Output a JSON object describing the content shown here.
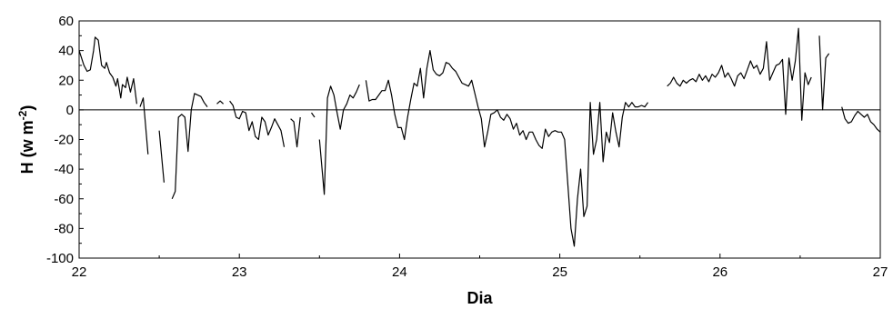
{
  "chart_data": {
    "type": "line",
    "xlabel": "Dia",
    "ylabel_main": "H (w m",
    "ylabel_sup": "-2",
    "ylabel_close": ")",
    "xlim": [
      22,
      27
    ],
    "ylim": [
      -100,
      60
    ],
    "xticks": [
      22,
      23,
      24,
      25,
      26,
      27
    ],
    "yticks": [
      -100,
      -80,
      -60,
      -40,
      -20,
      0,
      20,
      40,
      60
    ],
    "grid": false,
    "zero_line": true,
    "line_color": "#000000",
    "series": [
      {
        "segments": [
          [
            [
              22.0,
              40
            ],
            [
              22.03,
              30
            ],
            [
              22.05,
              26
            ],
            [
              22.07,
              27
            ],
            [
              22.09,
              40
            ],
            [
              22.1,
              49
            ],
            [
              22.12,
              47
            ],
            [
              22.14,
              30
            ],
            [
              22.16,
              28
            ],
            [
              22.17,
              32
            ],
            [
              22.19,
              25
            ],
            [
              22.21,
              22
            ],
            [
              22.23,
              16
            ],
            [
              22.24,
              21
            ],
            [
              22.26,
              8
            ],
            [
              22.27,
              17
            ],
            [
              22.29,
              15
            ],
            [
              22.3,
              22
            ],
            [
              22.32,
              12
            ],
            [
              22.34,
              21
            ],
            [
              22.36,
              4
            ]
          ],
          [
            [
              22.38,
              2
            ],
            [
              22.4,
              8
            ],
            [
              22.43,
              -30
            ]
          ],
          [
            [
              22.5,
              -14
            ],
            [
              22.53,
              -49
            ]
          ],
          [
            [
              22.58,
              -60
            ],
            [
              22.6,
              -55
            ],
            [
              22.62,
              -5
            ],
            [
              22.64,
              -3
            ],
            [
              22.66,
              -5
            ],
            [
              22.68,
              -28
            ],
            [
              22.7,
              0
            ],
            [
              22.72,
              11
            ],
            [
              22.74,
              10
            ],
            [
              22.76,
              9
            ],
            [
              22.78,
              5
            ],
            [
              22.8,
              2
            ]
          ],
          [
            [
              22.86,
              4
            ],
            [
              22.88,
              6
            ],
            [
              22.9,
              4
            ]
          ],
          [
            [
              22.94,
              6
            ],
            [
              22.96,
              3
            ],
            [
              22.98,
              -5
            ],
            [
              23.0,
              -6
            ],
            [
              23.02,
              -1
            ],
            [
              23.04,
              -2
            ],
            [
              23.06,
              -14
            ],
            [
              23.08,
              -8
            ],
            [
              23.1,
              -18
            ],
            [
              23.12,
              -20
            ],
            [
              23.14,
              -5
            ],
            [
              23.16,
              -8
            ],
            [
              23.18,
              -17
            ],
            [
              23.2,
              -12
            ],
            [
              23.22,
              -6
            ],
            [
              23.24,
              -10
            ],
            [
              23.26,
              -14
            ],
            [
              23.28,
              -25
            ]
          ],
          [
            [
              23.32,
              -6
            ],
            [
              23.34,
              -8
            ],
            [
              23.36,
              -25
            ],
            [
              23.38,
              -5
            ]
          ],
          [
            [
              23.45,
              -2
            ],
            [
              23.47,
              -5
            ]
          ],
          [
            [
              23.5,
              -20
            ],
            [
              23.53,
              -57
            ],
            [
              23.55,
              8
            ],
            [
              23.57,
              16
            ],
            [
              23.59,
              10
            ],
            [
              23.61,
              -2
            ],
            [
              23.63,
              -13
            ],
            [
              23.65,
              0
            ],
            [
              23.67,
              4
            ],
            [
              23.69,
              10
            ],
            [
              23.71,
              8
            ],
            [
              23.73,
              12
            ],
            [
              23.75,
              17
            ]
          ],
          [
            [
              23.79,
              20
            ],
            [
              23.81,
              6
            ],
            [
              23.83,
              7
            ],
            [
              23.85,
              7
            ],
            [
              23.87,
              10
            ],
            [
              23.89,
              13
            ],
            [
              23.91,
              13
            ],
            [
              23.93,
              20
            ],
            [
              23.95,
              10
            ],
            [
              23.97,
              -3
            ],
            [
              23.99,
              -12
            ],
            [
              24.01,
              -12
            ],
            [
              24.03,
              -20
            ],
            [
              24.05,
              -5
            ],
            [
              24.07,
              7
            ],
            [
              24.09,
              18
            ],
            [
              24.11,
              16
            ],
            [
              24.13,
              28
            ],
            [
              24.15,
              8
            ],
            [
              24.17,
              28
            ],
            [
              24.19,
              40
            ],
            [
              24.21,
              27
            ],
            [
              24.23,
              24
            ],
            [
              24.25,
              23
            ],
            [
              24.27,
              25
            ],
            [
              24.29,
              32
            ],
            [
              24.31,
              31
            ],
            [
              24.33,
              28
            ],
            [
              24.35,
              26
            ],
            [
              24.37,
              22
            ],
            [
              24.39,
              18
            ],
            [
              24.41,
              17
            ],
            [
              24.43,
              16
            ],
            [
              24.45,
              20
            ],
            [
              24.47,
              11
            ],
            [
              24.49,
              2
            ],
            [
              24.51,
              -6
            ],
            [
              24.53,
              -25
            ],
            [
              24.55,
              -15
            ],
            [
              24.57,
              -3
            ],
            [
              24.59,
              -2
            ],
            [
              24.61,
              0
            ],
            [
              24.63,
              -5
            ],
            [
              24.65,
              -7
            ],
            [
              24.67,
              -3
            ],
            [
              24.69,
              -6
            ],
            [
              24.71,
              -13
            ],
            [
              24.73,
              -9
            ],
            [
              24.75,
              -17
            ],
            [
              24.77,
              -14
            ],
            [
              24.79,
              -20
            ],
            [
              24.81,
              -15
            ],
            [
              24.83,
              -15
            ],
            [
              24.85,
              -20
            ],
            [
              24.87,
              -24
            ],
            [
              24.89,
              -26
            ],
            [
              24.91,
              -13
            ],
            [
              24.93,
              -18
            ],
            [
              24.95,
              -15
            ],
            [
              24.97,
              -14
            ],
            [
              24.99,
              -15
            ],
            [
              25.01,
              -15
            ],
            [
              25.03,
              -20
            ],
            [
              25.05,
              -50
            ],
            [
              25.07,
              -80
            ],
            [
              25.09,
              -92
            ],
            [
              25.11,
              -60
            ],
            [
              25.13,
              -40
            ],
            [
              25.15,
              -72
            ],
            [
              25.17,
              -65
            ],
            [
              25.19,
              5
            ],
            [
              25.21,
              -30
            ],
            [
              25.23,
              -20
            ],
            [
              25.25,
              5
            ],
            [
              25.27,
              -35
            ],
            [
              25.29,
              -15
            ],
            [
              25.31,
              -22
            ],
            [
              25.33,
              -2
            ],
            [
              25.35,
              -15
            ],
            [
              25.37,
              -25
            ],
            [
              25.39,
              -5
            ],
            [
              25.41,
              5
            ],
            [
              25.43,
              2
            ],
            [
              25.45,
              5
            ],
            [
              25.47,
              2
            ],
            [
              25.49,
              2
            ],
            [
              25.51,
              3
            ],
            [
              25.53,
              2
            ],
            [
              25.55,
              5
            ]
          ],
          [
            [
              25.67,
              16
            ],
            [
              25.69,
              18
            ],
            [
              25.71,
              22
            ],
            [
              25.73,
              18
            ],
            [
              25.75,
              16
            ],
            [
              25.77,
              20
            ],
            [
              25.79,
              18
            ],
            [
              25.81,
              20
            ],
            [
              25.83,
              21
            ],
            [
              25.85,
              19
            ],
            [
              25.87,
              24
            ],
            [
              25.89,
              20
            ],
            [
              25.91,
              23
            ],
            [
              25.93,
              19
            ],
            [
              25.95,
              24
            ],
            [
              25.97,
              22
            ],
            [
              25.99,
              25
            ],
            [
              26.01,
              30
            ],
            [
              26.03,
              22
            ],
            [
              26.05,
              25
            ],
            [
              26.07,
              21
            ],
            [
              26.09,
              16
            ],
            [
              26.11,
              23
            ],
            [
              26.13,
              25
            ],
            [
              26.15,
              21
            ],
            [
              26.17,
              27
            ],
            [
              26.19,
              33
            ],
            [
              26.21,
              28
            ],
            [
              26.23,
              30
            ],
            [
              26.25,
              24
            ],
            [
              26.27,
              28
            ],
            [
              26.29,
              46
            ],
            [
              26.31,
              20
            ],
            [
              26.33,
              25
            ],
            [
              26.35,
              30
            ],
            [
              26.37,
              31
            ],
            [
              26.39,
              34
            ],
            [
              26.41,
              -3
            ],
            [
              26.43,
              35
            ],
            [
              26.45,
              20
            ],
            [
              26.47,
              33
            ],
            [
              26.49,
              55
            ],
            [
              26.51,
              -7
            ],
            [
              26.53,
              25
            ],
            [
              26.55,
              17
            ],
            [
              26.57,
              22
            ]
          ],
          [
            [
              26.62,
              50
            ],
            [
              26.64,
              0
            ],
            [
              26.66,
              35
            ],
            [
              26.68,
              38
            ]
          ],
          [
            [
              26.76,
              2
            ],
            [
              26.78,
              -6
            ],
            [
              26.8,
              -9
            ],
            [
              26.82,
              -8
            ],
            [
              26.84,
              -4
            ],
            [
              26.86,
              -1
            ],
            [
              26.88,
              -3
            ],
            [
              26.9,
              -5
            ],
            [
              26.92,
              -3
            ],
            [
              26.94,
              -8
            ],
            [
              26.96,
              -10
            ],
            [
              26.98,
              -13
            ],
            [
              27.0,
              -15
            ]
          ]
        ]
      }
    ]
  }
}
